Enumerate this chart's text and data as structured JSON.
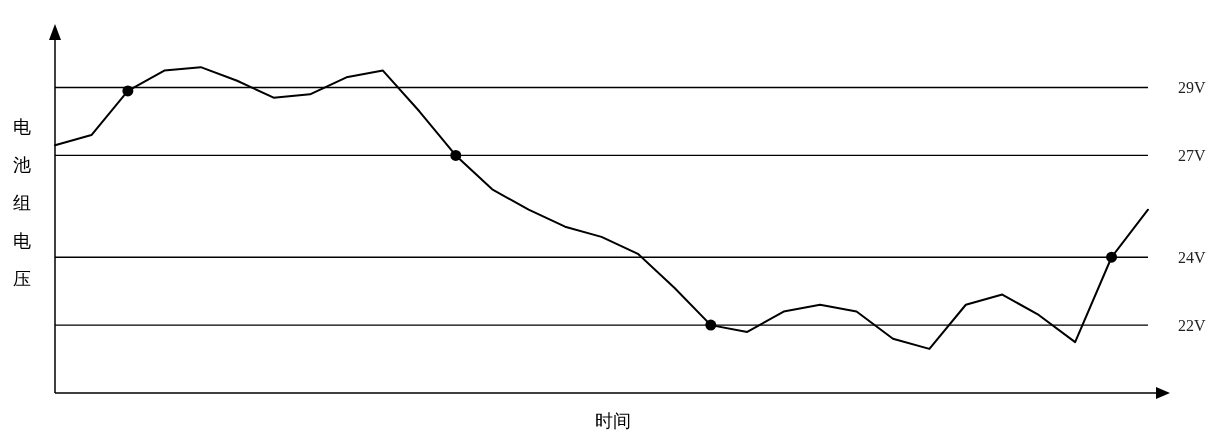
{
  "chart_data": {
    "type": "line",
    "xlabel": "时间",
    "ylabel": "电池组电压",
    "categories": [
      null,
      null,
      null,
      null,
      null,
      null,
      null,
      null,
      null,
      null,
      null,
      null,
      null,
      null,
      null,
      null,
      null,
      null,
      null,
      null,
      null,
      null,
      null,
      null,
      null,
      null,
      null,
      null,
      null,
      null,
      null
    ],
    "ylim": [
      20,
      30.4
    ],
    "yticks": [
      {
        "value": 22,
        "label": "22V"
      },
      {
        "value": 24,
        "label": "24V"
      },
      {
        "value": 27,
        "label": "27V"
      },
      {
        "value": 29,
        "label": "29V"
      }
    ],
    "grid": "y",
    "series": [
      {
        "color": "#000000",
        "values": [
          27.3,
          27.6,
          28.9,
          29.5,
          29.6,
          29.2,
          28.7,
          28.8,
          29.3,
          29.5,
          28.3,
          27.0,
          26.0,
          25.4,
          24.9,
          24.6,
          24.1,
          23.1,
          22.0,
          21.8,
          22.4,
          22.6,
          22.4,
          21.6,
          21.3,
          22.6,
          22.9,
          22.3,
          21.5,
          24.0,
          25.4
        ]
      },
      {
        "type": "scatter",
        "color": "#000000",
        "marker": "circle",
        "values": [
          null,
          null,
          28.9,
          null,
          null,
          null,
          null,
          null,
          null,
          null,
          null,
          27.0,
          null,
          null,
          null,
          null,
          null,
          null,
          22.0,
          null,
          null,
          null,
          null,
          null,
          null,
          null,
          null,
          null,
          null,
          24.0,
          null
        ]
      }
    ]
  }
}
